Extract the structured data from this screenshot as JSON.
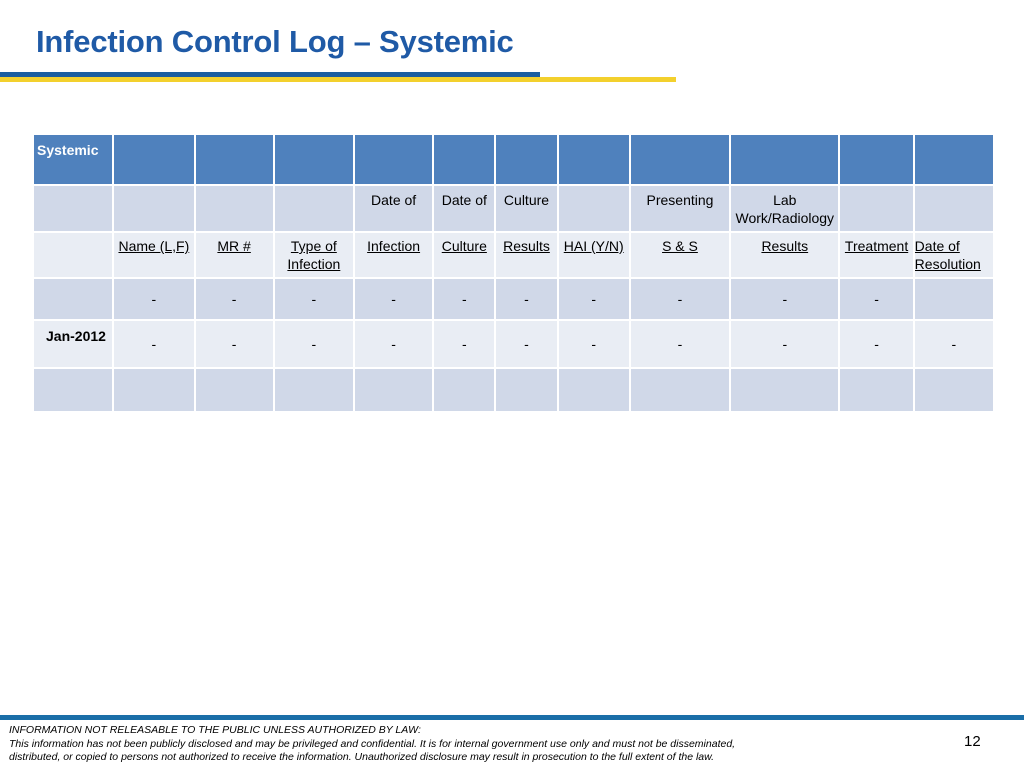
{
  "title": "Infection Control Log – Systemic",
  "table": {
    "section_label": "Systemic",
    "upper_headers": [
      "",
      "",
      "",
      "Date of",
      "Date of",
      "Culture",
      "",
      "Presenting",
      "Lab Work/Radiology",
      "",
      ""
    ],
    "column_labels": [
      "Name (L,F)",
      "MR #",
      "Type of Infection",
      "Infection",
      "Culture",
      "Results",
      "HAI (Y/N)",
      "S & S",
      "Results",
      "Treatment",
      "Date of Resolution"
    ],
    "rows": [
      {
        "label": "",
        "cells": [
          "-",
          "-",
          "-",
          "-",
          "-",
          "-",
          "-",
          "-",
          "-",
          "-",
          ""
        ]
      },
      {
        "label": "Jan-2012",
        "cells": [
          "-",
          "-",
          "-",
          "-",
          "-",
          "-",
          "-",
          "-",
          "-",
          "-",
          "-"
        ]
      },
      {
        "label": "",
        "cells": [
          "",
          "",
          "",
          "",
          "",
          "",
          "",
          "",
          "",
          "",
          ""
        ]
      }
    ]
  },
  "footer": {
    "line1": "INFORMATION NOT RELEASABLE TO THE PUBLIC UNLESS AUTHORIZED BY LAW:",
    "line2": "This information has not been publicly disclosed and may be privileged and confidential.  It is for internal government use only and must not be disseminated,",
    "line3": "distributed, or copied to persons not authorized to receive the information.  Unauthorized disclosure may result in prosecution to the full extent of the law."
  },
  "page_number": "12",
  "colors": {
    "title": "#1f5aa6",
    "header_fill": "#4f81bd",
    "row_dark": "#d0d8e8",
    "row_light": "#e9edf4",
    "rule_blue": "#1a5ea0",
    "rule_yellow": "#f3d02d"
  }
}
